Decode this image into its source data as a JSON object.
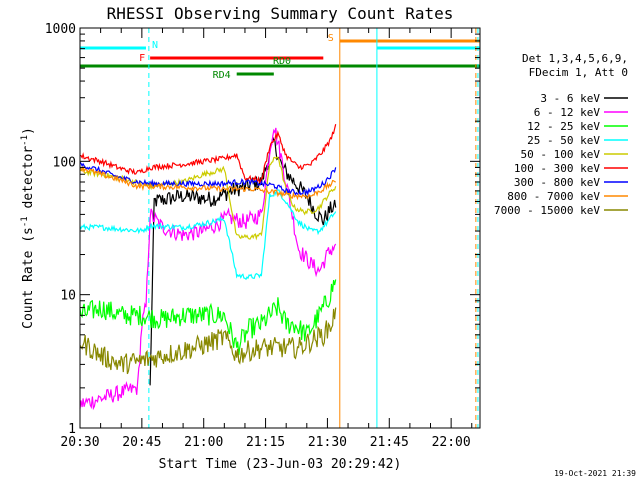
{
  "chart_data": {
    "type": "line",
    "title": "RHESSI Observing Summary Count Rates",
    "xlabel": "Start Time (23-Jun-03 20:29:42)",
    "ylabel": "Count Rate (s",
    "ylabel_sup": "-1",
    "ylabel_mid": " detector",
    "ylabel_end": ")",
    "yscale": "log",
    "ylim": [
      1,
      1000
    ],
    "xlim_minutes": [
      0,
      97
    ],
    "x_tick_labels": [
      "20:30",
      "20:45",
      "21:00",
      "21:15",
      "21:30",
      "21:45",
      "22:00"
    ],
    "x_tick_minutes": [
      0,
      15,
      30,
      45,
      60,
      75,
      90
    ],
    "y_tick_labels": [
      "1",
      "10",
      "100",
      "1000"
    ],
    "y_tick_values": [
      1,
      10,
      100,
      1000
    ],
    "legend_position": "right",
    "legend_header": [
      "Det 1,3,4,5,6,9,",
      "FDecim 1, Att 0"
    ],
    "series": [
      {
        "name": "3 - 6 keV",
        "color": "#000000",
        "points": [
          [
            17,
            2
          ],
          [
            18,
            50
          ],
          [
            25,
            55
          ],
          [
            32,
            52
          ],
          [
            38,
            62
          ],
          [
            44,
            70
          ],
          [
            47,
            140
          ],
          [
            49,
            90
          ],
          [
            52,
            70
          ],
          [
            55,
            55
          ],
          [
            57,
            42
          ],
          [
            59,
            36
          ],
          [
            61,
            45
          ],
          [
            62,
            45
          ]
        ]
      },
      {
        "name": "6 - 12 keV",
        "color": "#ff00ff",
        "points": [
          [
            0,
            1.5
          ],
          [
            14,
            2
          ],
          [
            15,
            6
          ],
          [
            16,
            8
          ],
          [
            17,
            40
          ],
          [
            20,
            32
          ],
          [
            25,
            28
          ],
          [
            30,
            30
          ],
          [
            34,
            35
          ],
          [
            36,
            38
          ],
          [
            40,
            35
          ],
          [
            44,
            40
          ],
          [
            46,
            120
          ],
          [
            47,
            190
          ],
          [
            49,
            100
          ],
          [
            51,
            48
          ],
          [
            53,
            22
          ],
          [
            56,
            17
          ],
          [
            58,
            15
          ],
          [
            60,
            20
          ],
          [
            62,
            24
          ]
        ]
      },
      {
        "name": "12 - 25 keV",
        "color": "#00ff00",
        "points": [
          [
            0,
            7
          ],
          [
            5,
            8
          ],
          [
            10,
            7
          ],
          [
            15,
            7
          ],
          [
            20,
            6.5
          ],
          [
            25,
            7
          ],
          [
            30,
            7
          ],
          [
            35,
            7
          ],
          [
            38,
            4
          ],
          [
            41,
            5.5
          ],
          [
            44,
            6
          ],
          [
            46,
            7
          ],
          [
            48,
            8
          ],
          [
            50,
            6
          ],
          [
            52,
            6
          ],
          [
            55,
            5
          ],
          [
            58,
            7
          ],
          [
            60,
            9
          ],
          [
            62,
            13
          ]
        ]
      },
      {
        "name": "25 - 50 keV",
        "color": "#00ffff",
        "points": [
          [
            0,
            32
          ],
          [
            5,
            32
          ],
          [
            10,
            31
          ],
          [
            15,
            30
          ],
          [
            17,
            33
          ],
          [
            25,
            32
          ],
          [
            30,
            34
          ],
          [
            35,
            37
          ],
          [
            38,
            14
          ],
          [
            41,
            13.5
          ],
          [
            44,
            14
          ],
          [
            46,
            55
          ],
          [
            48,
            60
          ],
          [
            50,
            50
          ],
          [
            53,
            35
          ],
          [
            56,
            30
          ],
          [
            58,
            30
          ],
          [
            60,
            35
          ],
          [
            62,
            42
          ]
        ]
      },
      {
        "name": "50 - 100 keV",
        "color": "#cccc00",
        "points": [
          [
            0,
            85
          ],
          [
            10,
            75
          ],
          [
            17,
            65
          ],
          [
            25,
            70
          ],
          [
            30,
            80
          ],
          [
            35,
            88
          ],
          [
            38,
            27
          ],
          [
            41,
            27
          ],
          [
            44,
            28
          ],
          [
            46,
            95
          ],
          [
            48,
            110
          ],
          [
            50,
            60
          ],
          [
            52,
            45
          ],
          [
            54,
            42
          ],
          [
            56,
            42
          ],
          [
            58,
            45
          ],
          [
            60,
            55
          ],
          [
            62,
            65
          ]
        ]
      },
      {
        "name": "100 - 300 keV",
        "color": "#ff0000",
        "points": [
          [
            0,
            110
          ],
          [
            5,
            100
          ],
          [
            10,
            88
          ],
          [
            14,
            82
          ],
          [
            17,
            90
          ],
          [
            25,
            95
          ],
          [
            30,
            100
          ],
          [
            35,
            105
          ],
          [
            38,
            112
          ],
          [
            40,
            75
          ],
          [
            44,
            72
          ],
          [
            46,
            130
          ],
          [
            48,
            160
          ],
          [
            50,
            110
          ],
          [
            53,
            90
          ],
          [
            56,
            95
          ],
          [
            59,
            120
          ],
          [
            61,
            150
          ],
          [
            62,
            190
          ]
        ]
      },
      {
        "name": "300 - 800 keV",
        "color": "#0000ff",
        "points": [
          [
            0,
            95
          ],
          [
            5,
            85
          ],
          [
            10,
            75
          ],
          [
            14,
            70
          ],
          [
            17,
            68
          ],
          [
            25,
            68
          ],
          [
            30,
            68
          ],
          [
            35,
            68
          ],
          [
            38,
            70
          ],
          [
            41,
            70
          ],
          [
            44,
            68
          ],
          [
            47,
            66
          ],
          [
            50,
            60
          ],
          [
            53,
            58
          ],
          [
            56,
            60
          ],
          [
            59,
            68
          ],
          [
            61,
            80
          ],
          [
            62,
            90
          ]
        ]
      },
      {
        "name": "800 - 7000 keV",
        "color": "#ff8800",
        "points": [
          [
            0,
            90
          ],
          [
            5,
            80
          ],
          [
            10,
            72
          ],
          [
            14,
            65
          ],
          [
            17,
            65
          ],
          [
            25,
            64
          ],
          [
            30,
            63
          ],
          [
            35,
            62
          ],
          [
            38,
            62
          ],
          [
            42,
            62
          ],
          [
            45,
            60
          ],
          [
            48,
            58
          ],
          [
            50,
            56
          ],
          [
            53,
            55
          ],
          [
            56,
            55
          ],
          [
            59,
            62
          ],
          [
            61,
            68
          ],
          [
            62,
            70
          ]
        ]
      },
      {
        "name": "7000 - 15000 keV",
        "color": "#888800",
        "points": [
          [
            0,
            4.5
          ],
          [
            5,
            3.5
          ],
          [
            10,
            3
          ],
          [
            15,
            3.2
          ],
          [
            20,
            3.5
          ],
          [
            25,
            3.8
          ],
          [
            30,
            4.2
          ],
          [
            35,
            4.8
          ],
          [
            38,
            3.5
          ],
          [
            41,
            3.8
          ],
          [
            44,
            4
          ],
          [
            47,
            4
          ],
          [
            50,
            4
          ],
          [
            53,
            4
          ],
          [
            56,
            4.5
          ],
          [
            59,
            5
          ],
          [
            61,
            6
          ],
          [
            62,
            8
          ]
        ]
      }
    ],
    "flag_bars": [
      {
        "label": "N",
        "color": "#00ffff",
        "segments": [
          [
            0,
            16
          ],
          [
            72,
            97
          ]
        ]
      },
      {
        "label": "F",
        "color": "#ff0000",
        "segments": [
          [
            17,
            59
          ]
        ]
      },
      {
        "label": "S",
        "color": "#ff8800",
        "segments": [
          [
            63,
            97
          ]
        ]
      },
      {
        "label": "RD0",
        "color": "#008800",
        "segments": [
          [
            0,
            97
          ]
        ]
      },
      {
        "label": "RD4",
        "color": "#008800",
        "segments": [
          [
            38,
            47
          ]
        ]
      }
    ],
    "vertical_lines": [
      {
        "minute": 16.7,
        "color": "#00ffff",
        "style": "dashed"
      },
      {
        "minute": 63,
        "color": "#ff8800",
        "style": "solid"
      },
      {
        "minute": 72,
        "color": "#00ffff",
        "style": "solid"
      },
      {
        "minute": 96,
        "color": "#ff8800",
        "style": "dashed"
      },
      {
        "minute": 96.5,
        "color": "#00ffff",
        "style": "dashed"
      }
    ],
    "date_stamp": "19-Oct-2021 21:39"
  }
}
